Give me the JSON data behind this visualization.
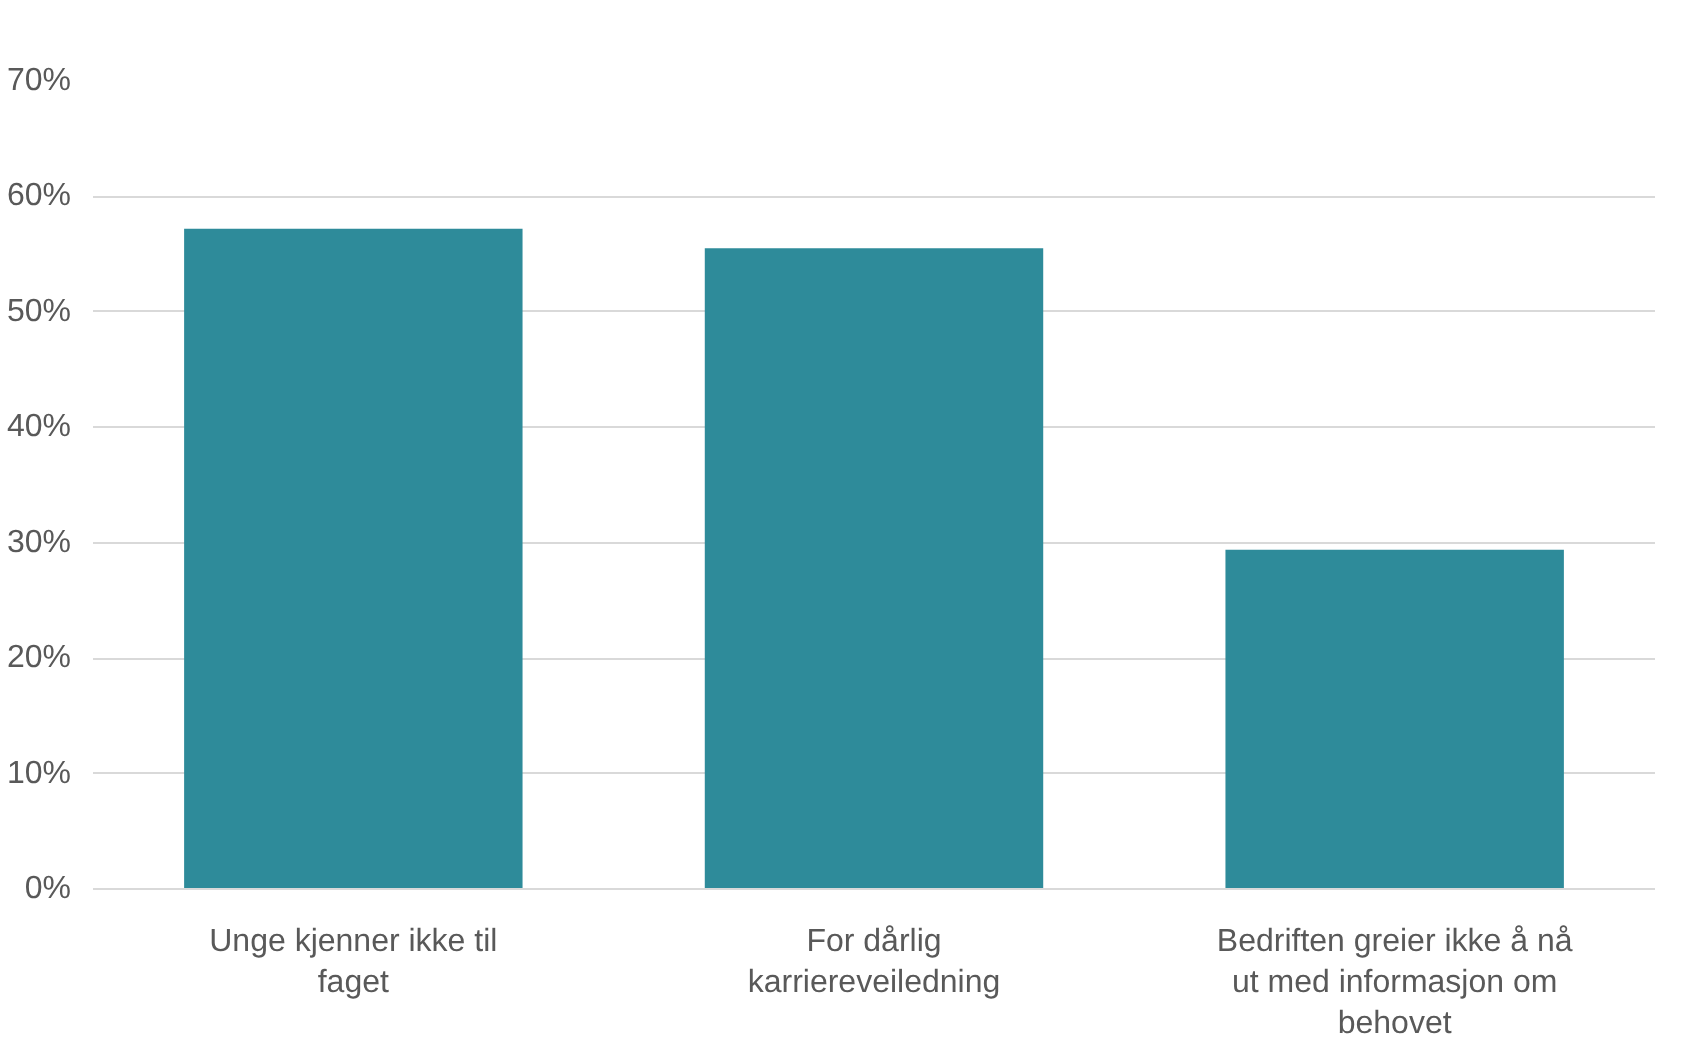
{
  "chart_data": {
    "type": "bar",
    "categories": [
      "Unge kjenner ikke til faget",
      "For dårlig karriereveiledning",
      "Bedriften greier ikke å nå ut med informasjon om behovet"
    ],
    "values": [
      57.2,
      55.5,
      29.4
    ],
    "color": "#2e8b9a",
    "ylim": [
      0,
      70
    ],
    "yticks": [
      {
        "value": 0,
        "label": "0%"
      },
      {
        "value": 10,
        "label": "10%"
      },
      {
        "value": 20,
        "label": "20%"
      },
      {
        "value": 30,
        "label": "30%"
      },
      {
        "value": 40,
        "label": "40%"
      },
      {
        "value": 50,
        "label": "50%"
      },
      {
        "value": 60,
        "label": "60%"
      },
      {
        "value": 70,
        "label": "70%"
      }
    ],
    "grid": "y"
  }
}
